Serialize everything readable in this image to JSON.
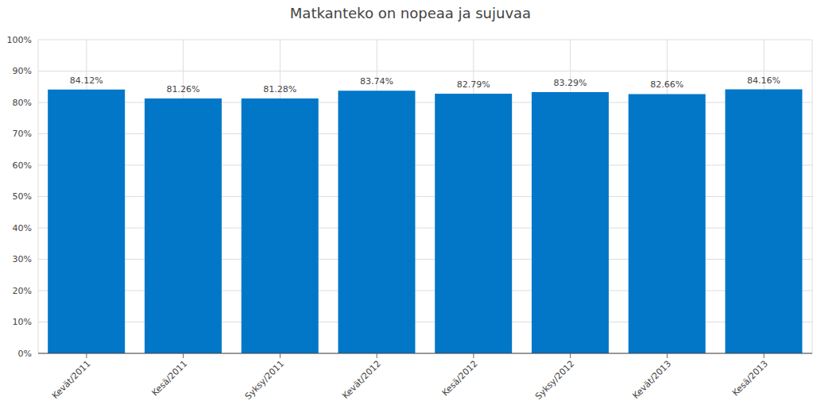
{
  "chart_data": {
    "type": "bar",
    "title": "Matkanteko on nopeaa ja sujuvaa",
    "categories": [
      "Kevät/2011",
      "Kesä/2011",
      "Syksy/2011",
      "Kevät/2012",
      "Kesä/2012",
      "Syksy/2012",
      "Kevät/2013",
      "Kesä/2013"
    ],
    "values": [
      84.12,
      81.26,
      81.28,
      83.74,
      82.79,
      83.29,
      82.66,
      84.16
    ],
    "value_labels": [
      "84.12%",
      "81.26%",
      "81.28%",
      "83.74%",
      "82.79%",
      "83.29%",
      "82.66%",
      "84.16%"
    ],
    "color": "#0277c8",
    "ylim": [
      0,
      100
    ],
    "yticks": [
      {
        "value": 0,
        "label": "0%"
      },
      {
        "value": 10,
        "label": "10%"
      },
      {
        "value": 20,
        "label": "20%"
      },
      {
        "value": 30,
        "label": "30%"
      },
      {
        "value": 40,
        "label": "40%"
      },
      {
        "value": 50,
        "label": "50%"
      },
      {
        "value": 60,
        "label": "60%"
      },
      {
        "value": 70,
        "label": "70%"
      },
      {
        "value": 80,
        "label": "80%"
      },
      {
        "value": 90,
        "label": "90%"
      },
      {
        "value": 100,
        "label": "100%"
      }
    ],
    "grid": true,
    "data_labels": true
  }
}
